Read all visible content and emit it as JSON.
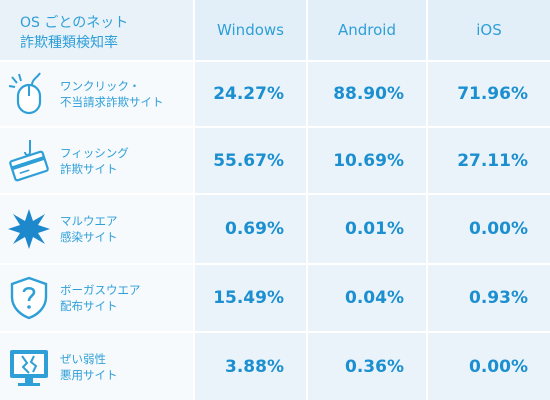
{
  "header": {
    "title_line1": "OS ごとのネット",
    "title_line2": "詐欺種類検知率",
    "columns": [
      "Windows",
      "Android",
      "iOS"
    ]
  },
  "rows": [
    {
      "icon": "mouse-click-icon",
      "label_line1": "ワンクリック・",
      "label_line2": "不当請求詐欺サイト",
      "values": [
        "24.27%",
        "88.90%",
        "71.96%"
      ]
    },
    {
      "icon": "credit-card-hook-icon",
      "label_line1": "フィッシング",
      "label_line2": "詐欺サイト",
      "values": [
        "55.67%",
        "10.69%",
        "27.11%"
      ]
    },
    {
      "icon": "malware-splat-icon",
      "label_line1": "マルウエア",
      "label_line2": "感染サイト",
      "values": [
        "0.69%",
        "0.01%",
        "0.00%"
      ]
    },
    {
      "icon": "shield-question-icon",
      "label_line1": "ボーガスウエア",
      "label_line2": "配布サイト",
      "values": [
        "15.49%",
        "0.04%",
        "0.93%"
      ]
    },
    {
      "icon": "monitor-broken-icon",
      "label_line1": "ぜい弱性",
      "label_line2": "悪用サイト",
      "values": [
        "3.88%",
        "0.36%",
        "0.00%"
      ]
    }
  ],
  "colors": {
    "accent": "#2f9fd8",
    "value_text": "#1b8fd0",
    "cell_bg": "#eaf3fa",
    "header_bg": "#e3eff8"
  }
}
